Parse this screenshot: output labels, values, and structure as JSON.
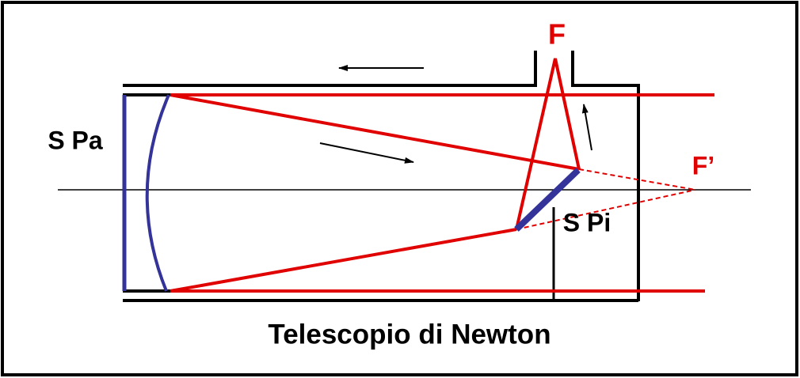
{
  "diagram": {
    "title": "Telescopio di Newton",
    "labels": {
      "focus": "F",
      "virtual_focus": "F’",
      "primary_mirror": "S Pa",
      "secondary_mirror": "S Pi"
    }
  }
}
